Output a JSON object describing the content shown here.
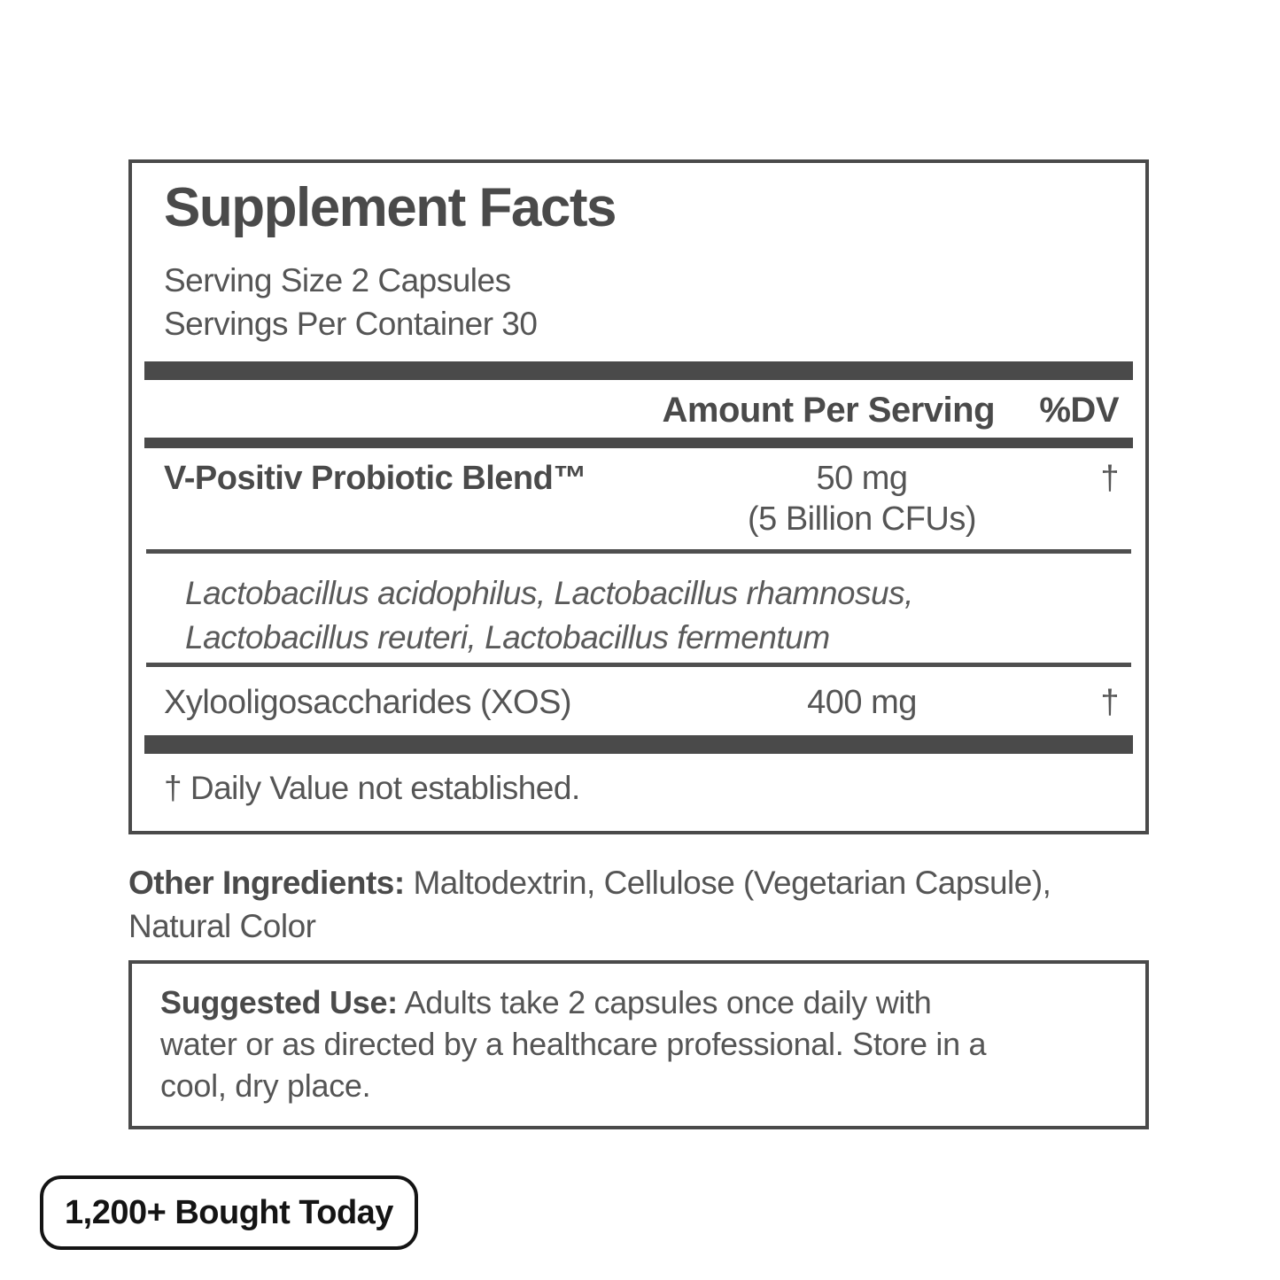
{
  "colors": {
    "panel_ink": "#4a4a4a",
    "body_ink": "#555555",
    "badge_ink": "#141414",
    "background": "#ffffff"
  },
  "supplement_facts": {
    "title": "Supplement Facts",
    "serving_size": "Serving Size 2 Capsules",
    "servings_per_container": "Servings Per Container 30",
    "columns": {
      "amount_header": "Amount Per Serving",
      "dv_header": "%DV"
    },
    "rows": [
      {
        "name": "V-Positiv Probiotic Blend™",
        "amount": "50 mg",
        "amount_note": "(5 Billion CFUs)",
        "dv": "†"
      },
      {
        "name": "Xylooligosaccharides (XOS)",
        "amount": "400 mg",
        "dv": "†"
      }
    ],
    "strain_lines": [
      "Lactobacillus acidophilus, Lactobacillus rhamnosus,",
      "Lactobacillus reuteri, Lactobacillus fermentum"
    ],
    "footnote": "† Daily Value not established."
  },
  "other_ingredients": {
    "label": "Other Ingredients:",
    "lines": [
      "Maltodextrin, Cellulose (Vegetarian Capsule),",
      "Natural Color"
    ]
  },
  "suggested_use": {
    "label": "Suggested Use:",
    "lines": [
      "Adults take 2 capsules once daily with",
      "water or as directed by a healthcare professional. Store in a",
      "cool, dry place."
    ]
  },
  "badge": {
    "text": "1,200+ Bought Today"
  }
}
